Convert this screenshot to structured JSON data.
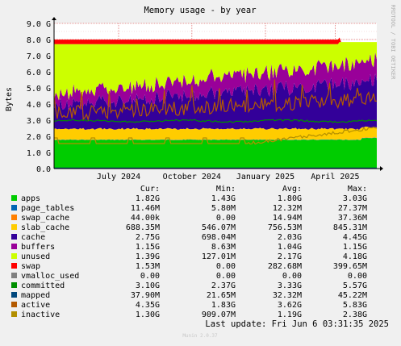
{
  "chart_data": {
    "type": "area",
    "title": "Memory usage - by year",
    "ylabel": "Bytes",
    "side_label": "RRDTOOL / TOBI OETIKER",
    "footer_label": "Munin 2.0.37",
    "last_update": "Last update: Fri Jun  6 03:31:35 2025",
    "grid": true,
    "ylim": [
      0,
      9.0
    ],
    "yticks": [
      {
        "v": 0.0,
        "label": "0.0"
      },
      {
        "v": 1.0,
        "label": "1.0 G"
      },
      {
        "v": 2.0,
        "label": "2.0 G"
      },
      {
        "v": 3.0,
        "label": "3.0 G"
      },
      {
        "v": 4.0,
        "label": "4.0 G"
      },
      {
        "v": 5.0,
        "label": "5.0 G"
      },
      {
        "v": 6.0,
        "label": "6.0 G"
      },
      {
        "v": 7.0,
        "label": "7.0 G"
      },
      {
        "v": 8.0,
        "label": "8.0 G"
      },
      {
        "v": 9.0,
        "label": "9.0 G"
      }
    ],
    "xticks": [
      {
        "label": "July 2024",
        "pos": 0.2
      },
      {
        "label": "October 2024",
        "pos": 0.427
      },
      {
        "label": "January 2025",
        "pos": 0.655
      },
      {
        "label": "April 2025",
        "pos": 0.871
      }
    ],
    "table_headers": [
      "Cur:",
      "Min:",
      "Avg:",
      "Max:"
    ],
    "series": [
      {
        "name": "apps",
        "color": "#00cc00",
        "cur": "1.82G",
        "min": "1.43G",
        "avg": "1.80G",
        "max": "3.03G"
      },
      {
        "name": "page_tables",
        "color": "#0066b3",
        "cur": "11.46M",
        "min": "5.80M",
        "avg": "12.32M",
        "max": "27.37M"
      },
      {
        "name": "swap_cache",
        "color": "#ff8000",
        "cur": "44.00k",
        "min": "0.00",
        "avg": "14.94M",
        "max": "37.36M"
      },
      {
        "name": "slab_cache",
        "color": "#ffcc00",
        "cur": "688.35M",
        "min": "546.07M",
        "avg": "756.53M",
        "max": "845.31M"
      },
      {
        "name": "cache",
        "color": "#330099",
        "cur": "2.75G",
        "min": "698.04M",
        "avg": "2.03G",
        "max": "4.45G"
      },
      {
        "name": "buffers",
        "color": "#990099",
        "cur": "1.15G",
        "min": "8.63M",
        "avg": "1.04G",
        "max": "1.15G"
      },
      {
        "name": "unused",
        "color": "#ccff00",
        "cur": "1.39G",
        "min": "127.01M",
        "avg": "2.17G",
        "max": "4.18G"
      },
      {
        "name": "swap",
        "color": "#ff0000",
        "cur": "1.53M",
        "min": "0.00",
        "avg": "282.68M",
        "max": "399.65M"
      },
      {
        "name": "vmalloc_used",
        "color": "#808080",
        "cur": "0.00",
        "min": "0.00",
        "avg": "0.00",
        "max": "0.00"
      },
      {
        "name": "committed",
        "color": "#008f00",
        "cur": "3.10G",
        "min": "2.37G",
        "avg": "3.33G",
        "max": "5.57G"
      },
      {
        "name": "mapped",
        "color": "#00487d",
        "cur": "37.90M",
        "min": "21.65M",
        "avg": "32.32M",
        "max": "45.22M"
      },
      {
        "name": "active",
        "color": "#b35a00",
        "cur": "4.35G",
        "min": "1.83G",
        "avg": "3.62G",
        "max": "5.83G"
      },
      {
        "name": "inactive",
        "color": "#b38f00",
        "cur": "1.30G",
        "min": "909.07M",
        "avg": "1.19G",
        "max": "2.38G"
      }
    ]
  }
}
